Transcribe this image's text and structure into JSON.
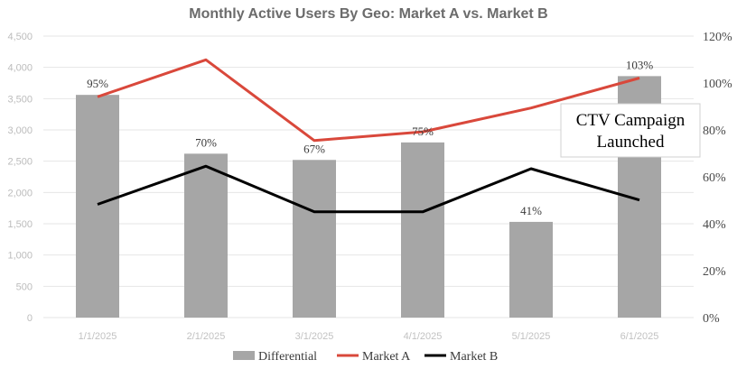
{
  "chart_data": {
    "type": "bar",
    "title": "Monthly Active Users By Geo: Market A vs. Market B",
    "categories": [
      "1/1/2025",
      "2/1/2025",
      "3/1/2025",
      "4/1/2025",
      "5/1/2025",
      "6/1/2025"
    ],
    "xlabel": "",
    "ylabel": "",
    "ylim": [
      0,
      4500
    ],
    "yticks": [
      "0",
      "500",
      "1,000",
      "1,500",
      "2,000",
      "2,500",
      "3,000",
      "3,500",
      "4,000",
      "4,500"
    ],
    "y2lim": [
      0,
      120
    ],
    "y2ticks": [
      "0%",
      "20%",
      "40%",
      "60%",
      "80%",
      "100%",
      "120%"
    ],
    "grid": true,
    "legend_position": "bottom",
    "series": [
      {
        "name": "Differential",
        "kind": "bar",
        "axis": "left",
        "color": "#a6a6a6",
        "values": [
          3560,
          2620,
          2520,
          2800,
          1530,
          3860
        ],
        "labels": [
          "95%",
          "70%",
          "67%",
          "75%",
          "41%",
          "103%"
        ]
      },
      {
        "name": "Market A",
        "kind": "line",
        "axis": "left",
        "color": "#d9483b",
        "values": [
          3530,
          4120,
          2830,
          2970,
          3350,
          3830
        ]
      },
      {
        "name": "Market B",
        "kind": "line",
        "axis": "left",
        "color": "#000000",
        "values": [
          1810,
          2420,
          1690,
          1690,
          2380,
          1880
        ]
      }
    ],
    "annotation": {
      "lines": [
        "CTV Campaign",
        "Launched"
      ]
    }
  }
}
